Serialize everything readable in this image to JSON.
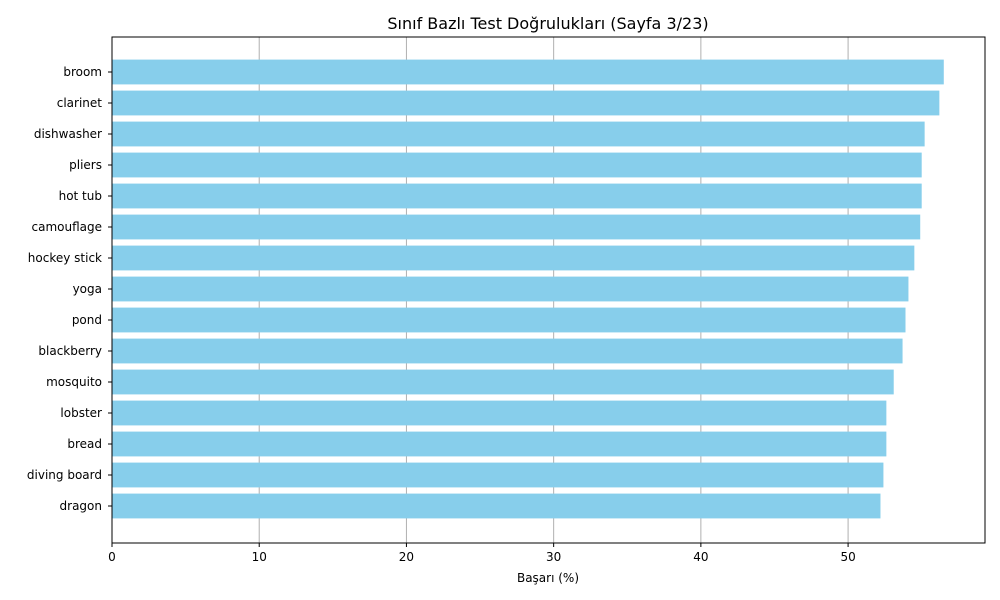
{
  "chart_data": {
    "type": "bar",
    "orientation": "horizontal",
    "title": "Sınıf Bazlı Test Doğrulukları (Sayfa 3/23)",
    "xlabel": "Başarı (%)",
    "ylabel": "",
    "xlim": [
      0,
      59.3
    ],
    "xticks": [
      0,
      10,
      20,
      30,
      40,
      50
    ],
    "grid": "x-major",
    "bar_color": "#87ceeb",
    "categories": [
      "broom",
      "clarinet",
      "dishwasher",
      "pliers",
      "hot tub",
      "camouflage",
      "hockey stick",
      "yoga",
      "pond",
      "blackberry",
      "mosquito",
      "lobster",
      "bread",
      "diving board",
      "dragon"
    ],
    "values": [
      56.5,
      56.2,
      55.2,
      55.0,
      55.0,
      54.9,
      54.5,
      54.1,
      53.9,
      53.7,
      53.1,
      52.6,
      52.6,
      52.4,
      52.2
    ]
  }
}
